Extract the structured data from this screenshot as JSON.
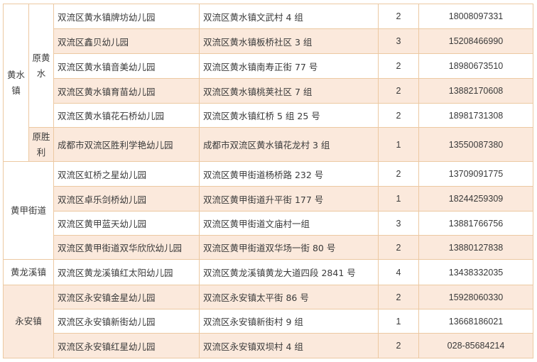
{
  "colors": {
    "peach": "#fbe9dc",
    "border": "#ecc9a2"
  },
  "groups": [
    {
      "town": "黄水镇",
      "sub": [
        {
          "name": "原黄水"
        },
        {
          "name": "原胜利"
        }
      ]
    },
    {
      "town": "黄甲街道"
    },
    {
      "town": "黄龙溪镇"
    },
    {
      "town": "永安镇"
    }
  ],
  "rows": [
    {
      "name": "双流区黄水镇牌坊幼儿园",
      "address": "双流区黄水镇文武村 4 组",
      "count": "2",
      "phone": "18008097331"
    },
    {
      "name": "双流区鑫贝幼儿园",
      "address": "双流区黄水镇板桥社区 3 组",
      "count": "3",
      "phone": "15208466990"
    },
    {
      "name": "双流区黄水镇音美幼儿园",
      "address": "双流区黄水镇南寿正街 77 号",
      "count": "2",
      "phone": "18980673510"
    },
    {
      "name": "双流区黄水镇育苗幼儿园",
      "address": "双流区黄水镇桃荚社区 7 组",
      "count": "2",
      "phone": "13882170608"
    },
    {
      "name": "双流区黄水镇花石桥幼儿园",
      "address": "双流区黄水镇红桥 5 组 25 号",
      "count": "2",
      "phone": "18981731308"
    },
    {
      "name": "成都市双流区胜利学艳幼儿园",
      "address": "成都市双流区黄水镇花龙村 3 组",
      "count": "1",
      "phone": "13550087380"
    },
    {
      "name": "双流区虹桥之星幼儿园",
      "address": "双流区黄甲街道杨桥路 232 号",
      "count": "2",
      "phone": "13709091775"
    },
    {
      "name": "双流区卓乐剑桥幼儿园",
      "address": "双流区黄甲街道升平街 177 号",
      "count": "1",
      "phone": "18244259309"
    },
    {
      "name": "双流区黄甲蓝天幼儿园",
      "address": "双流区黄甲街道文庙村一组",
      "count": "3",
      "phone": "13881766756"
    },
    {
      "name": "双流区黄甲街道双华欣欣幼儿园",
      "address": "双流区黄甲街道双华场一街 80 号",
      "count": "2",
      "phone": "13880127838"
    },
    {
      "name": "双流区黄龙溪镇红太阳幼儿园",
      "address": "双流区黄龙溪镇黄龙大道四段 2841 号",
      "count": "4",
      "phone": "13438332035"
    },
    {
      "name": "双流区永安镇金星幼儿园",
      "address": "双流区永安镇太平街 86 号",
      "count": "2",
      "phone": "15928060330"
    },
    {
      "name": "双流区永安镇新街幼儿园",
      "address": "双流区永安镇新街村 9 组",
      "count": "1",
      "phone": "13668186021"
    },
    {
      "name": "双流区永安镇红星幼儿园",
      "address": "双流区永安镇双坝村 4 组",
      "count": "2",
      "phone": "028-85684214"
    }
  ]
}
